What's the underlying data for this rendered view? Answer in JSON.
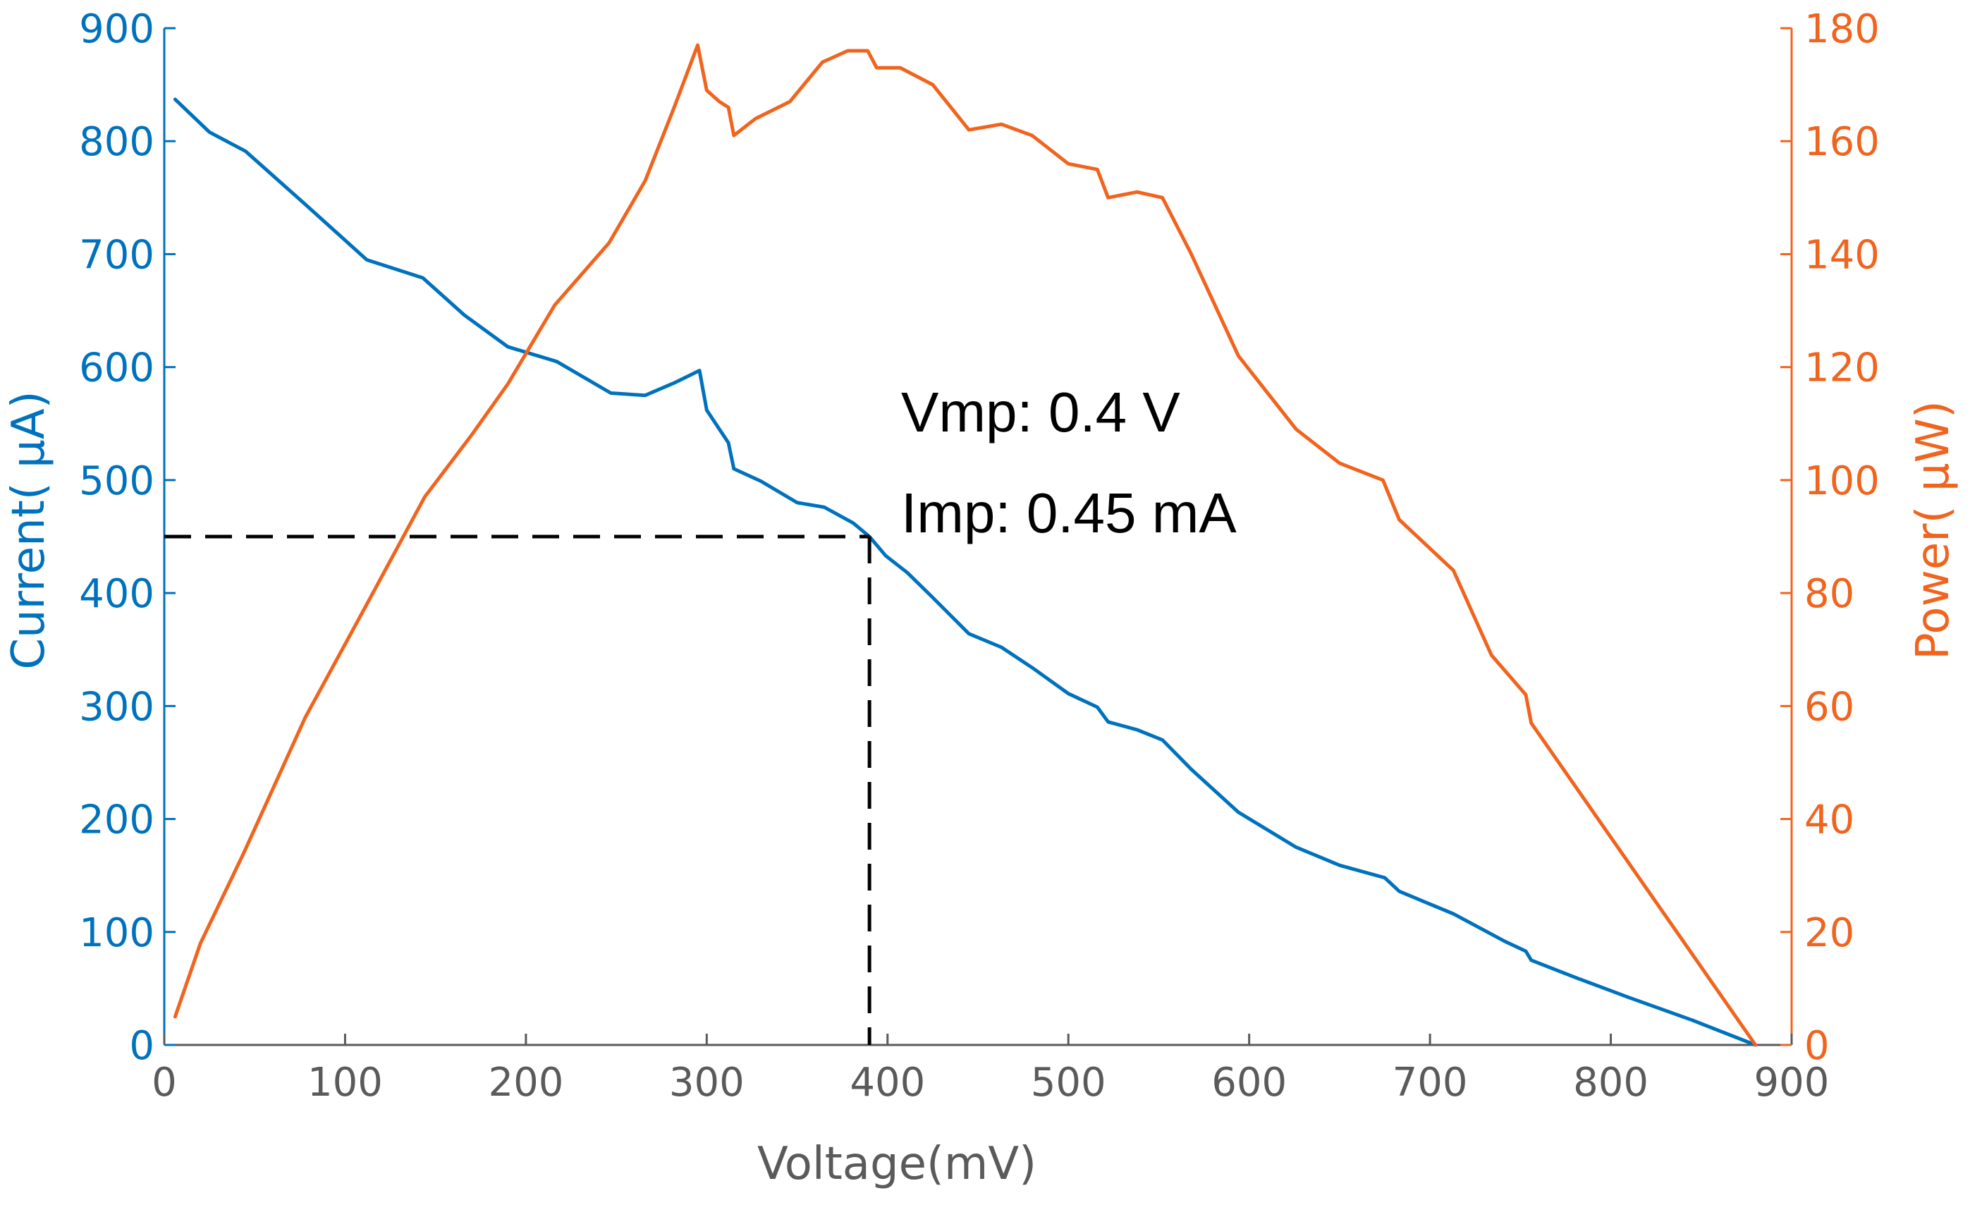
{
  "chart_data": {
    "type": "line",
    "title": "",
    "xlabel": "Voltage(mV)",
    "ylabel": "Current( μA)",
    "y2label": "Power( μW)",
    "xlim": [
      0,
      900
    ],
    "ylim": [
      0,
      900
    ],
    "y2lim": [
      0,
      180
    ],
    "xticks": [
      "0",
      "100",
      "200",
      "300",
      "400",
      "500",
      "600",
      "700",
      "800",
      "900"
    ],
    "yticks": [
      "0",
      "100",
      "200",
      "300",
      "400",
      "500",
      "600",
      "700",
      "800",
      "900"
    ],
    "y2ticks": [
      "0",
      "20",
      "40",
      "60",
      "80",
      "100",
      "120",
      "140",
      "160",
      "180"
    ],
    "grid": false,
    "colors": {
      "current": "#0072bd",
      "power": "#f0641e",
      "annotation": "#000000",
      "axis": "#5a5a5a"
    },
    "series": [
      {
        "name": "Current",
        "axis": "left",
        "color": "#0072bd",
        "x": [
          6,
          25,
          45,
          78,
          112,
          143,
          166,
          190,
          217,
          247,
          266,
          282,
          296,
          300,
          312,
          315,
          330,
          350,
          365,
          381,
          390,
          399,
          411,
          425,
          445,
          463,
          480,
          500,
          516,
          522,
          538,
          552,
          568,
          594,
          626,
          650,
          675,
          683,
          713,
          741,
          753,
          756,
          780,
          810,
          845,
          880
        ],
        "values": [
          837,
          808,
          791,
          744,
          695,
          679,
          646,
          618,
          605,
          577,
          575,
          586,
          597,
          562,
          533,
          510,
          499,
          480,
          476,
          462,
          450,
          433,
          418,
          396,
          364,
          352,
          334,
          311,
          299,
          286,
          279,
          270,
          244,
          206,
          175,
          159,
          148,
          136,
          116,
          92,
          83,
          75,
          60,
          42,
          22,
          0
        ]
      },
      {
        "name": "Power",
        "axis": "right",
        "color": "#f0641e",
        "x": [
          6,
          20,
          44,
          78,
          112,
          144,
          170,
          190,
          216,
          246,
          266,
          282,
          295,
          300,
          307,
          312,
          315,
          327,
          346,
          364,
          378,
          389,
          394,
          407,
          425,
          445,
          463,
          480,
          500,
          516,
          522,
          538,
          552,
          568,
          594,
          626,
          650,
          674,
          683,
          713,
          734,
          753,
          756,
          880
        ],
        "values": [
          5,
          18,
          34,
          58,
          78,
          97,
          108,
          117,
          131,
          142,
          153,
          166,
          177,
          169,
          167,
          166,
          161,
          164,
          167,
          174,
          176,
          176,
          173,
          173,
          170,
          162,
          163,
          161,
          156,
          155,
          150,
          151,
          150,
          140,
          122,
          109,
          103,
          100,
          93,
          84,
          69,
          62,
          57,
          0
        ]
      }
    ],
    "annotations": [
      {
        "text": "Vmp: 0.4 V"
      },
      {
        "text": "Imp: 0.45 mA"
      }
    ],
    "marker_point": {
      "x": 390,
      "y": 450
    }
  }
}
